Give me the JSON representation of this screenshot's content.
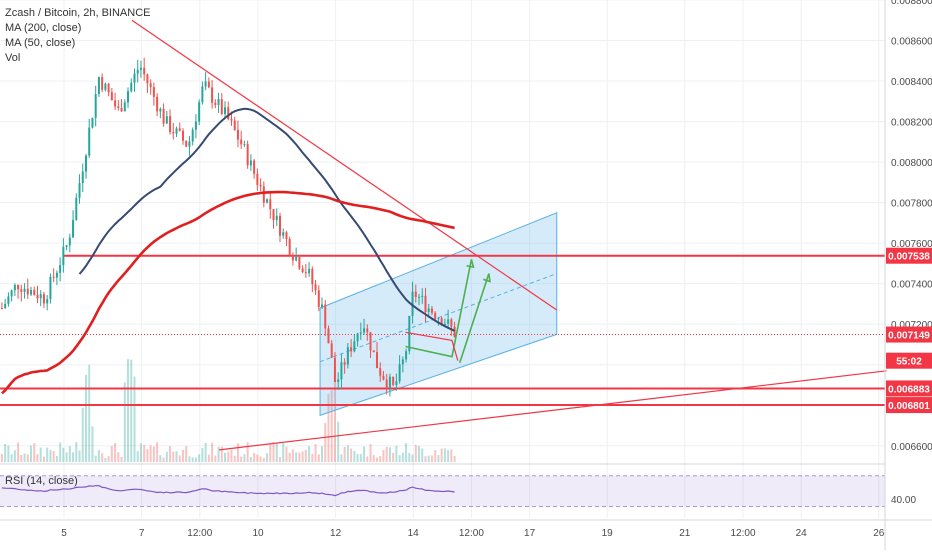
{
  "chart_data": {
    "type": "candlestick",
    "title": "Zcash / Bitcoin, 2h, BINANCE",
    "indicators": [
      "MA (200, close)",
      "MA (50, close)",
      "Vol"
    ],
    "rsi_label": "RSI (14, close)",
    "price_axis": {
      "ylim": [
        0.00652,
        0.0088
      ],
      "ticks": [
        "0.006600",
        "0.006800",
        "0.007000",
        "0.007200",
        "0.007400",
        "0.007600",
        "0.007800",
        "0.008000",
        "0.008200",
        "0.008400",
        "0.008600",
        "0.008800"
      ],
      "tick_values": [
        0.0066,
        0.0068,
        0.007,
        0.0072,
        0.0074,
        0.0076,
        0.0078,
        0.008,
        0.0082,
        0.0084,
        0.0086,
        0.0088
      ]
    },
    "time_axis": {
      "labels": [
        "5",
        "7",
        "12:00",
        "10",
        "12",
        "14",
        "12:00",
        "17",
        "19",
        "21",
        "12:00",
        "24",
        "26"
      ],
      "positions_days": [
        1,
        3,
        4.5,
        6,
        8,
        10,
        11.5,
        13,
        15,
        17,
        18.5,
        20,
        22
      ]
    },
    "rsi": {
      "ylim": [
        15,
        80
      ],
      "upper_band": 70,
      "lower_band": 30,
      "tick": "40.00",
      "tick_value": 40
    },
    "price_labels": [
      {
        "text": "0.007538",
        "value": 0.007538,
        "color": "#f23645"
      },
      {
        "text": "0.007149",
        "value": 0.007149,
        "color": "#f23645"
      },
      {
        "text": "55:02",
        "value": 0.00702,
        "color": "#f23645"
      },
      {
        "text": "0.006883",
        "value": 0.006883,
        "color": "#f23645"
      },
      {
        "text": "0.006801",
        "value": 0.006801,
        "color": "#f23645"
      }
    ],
    "horizontal_levels": [
      0.007538,
      0.006883,
      0.006801
    ],
    "last_price": 0.007149,
    "colors": {
      "up": "#26a69a",
      "down": "#ef5350",
      "level": "#f23645",
      "ma200": "#e02020",
      "ma50": "#364a73",
      "channel": "#58b1e6",
      "arrow": "#4caf50",
      "rsi": "#7e57c2"
    },
    "drawings": {
      "downtrend": [
        [
          2.75,
          0.0087
        ],
        [
          13.7,
          0.00727
        ]
      ],
      "uptrend": [
        [
          5.0,
          0.00658
        ],
        [
          22.2,
          0.00697
        ]
      ],
      "channel_lower": [
        [
          7.6,
          0.00675
        ],
        [
          13.7,
          0.00715
        ]
      ],
      "channel_upper": [
        [
          7.6,
          0.00728
        ],
        [
          13.7,
          0.00775
        ]
      ],
      "arrows": [
        [
          [
            9.8,
            0.00709
          ],
          [
            11.0,
            0.00704
          ],
          [
            11.5,
            0.00752
          ]
        ],
        [
          [
            11.2,
            0.00701
          ],
          [
            11.95,
            0.00745
          ]
        ]
      ]
    }
  }
}
